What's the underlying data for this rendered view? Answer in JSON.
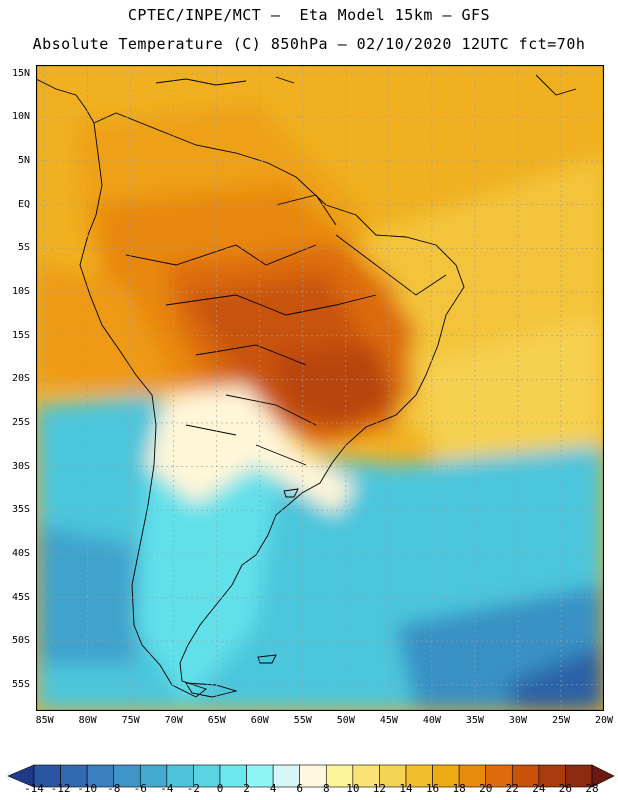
{
  "header": {
    "line1": "CPTEC/INPE/MCT –  Eta Model 15km – GFS",
    "line2": "Absolute Temperature (C) 850hPa – 02/10/2020 12UTC fct=70h"
  },
  "map": {
    "lon_range": [
      -86,
      -20
    ],
    "lat_range": [
      -58,
      16
    ],
    "lat_labels": [
      "15N",
      "10N",
      "5N",
      "EQ",
      "5S",
      "10S",
      "15S",
      "20S",
      "25S",
      "30S",
      "35S",
      "40S",
      "45S",
      "50S",
      "55S"
    ],
    "lat_values": [
      15,
      10,
      5,
      0,
      -5,
      -10,
      -15,
      -20,
      -25,
      -30,
      -35,
      -40,
      -45,
      -50,
      -55
    ],
    "lon_labels": [
      "85W",
      "80W",
      "75W",
      "70W",
      "65W",
      "60W",
      "55W",
      "50W",
      "45W",
      "40W",
      "35W",
      "30W",
      "25W",
      "20W"
    ],
    "lon_values": [
      -85,
      -80,
      -75,
      -70,
      -65,
      -60,
      -55,
      -50,
      -45,
      -40,
      -35,
      -30,
      -25,
      -20
    ],
    "grid": true
  },
  "colorbar": {
    "levels": [
      "-14",
      "-12",
      "-10",
      "-8",
      "-6",
      "-4",
      "-2",
      "0",
      "2",
      "4",
      "6",
      "8",
      "10",
      "12",
      "14",
      "16",
      "18",
      "20",
      "22",
      "24",
      "26",
      "28"
    ],
    "colors": [
      "#1f3a8a",
      "#2a55a0",
      "#3269b0",
      "#3a80c0",
      "#3f95c8",
      "#45aad0",
      "#4fc3da",
      "#5ad4e4",
      "#6ee6ee",
      "#8ff4f4",
      "#d8f6f8",
      "#fff8e0",
      "#fdf59a",
      "#f8e374",
      "#f5d455",
      "#f2c02e",
      "#eeaa14",
      "#e88a0e",
      "#df6a0a",
      "#c8520a",
      "#a93c0c",
      "#8c2a10",
      "#6a1a12"
    ]
  }
}
